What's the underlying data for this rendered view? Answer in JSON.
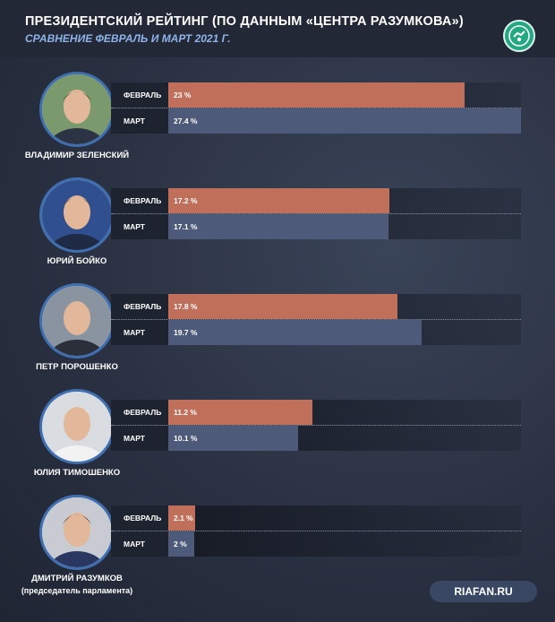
{
  "header": {
    "title": "ПРЕЗИДЕНТСКИЙ РЕЙТИНГ (ПО ДАННЫМ «ЦЕНТРА РАЗУМКОВА»)",
    "subtitle": "СРАВНЕНИЕ ФЕВРАЛЬ И МАРТ 2021 Г."
  },
  "source": "RIAFAN.RU",
  "colors": {
    "february": "#c0705a",
    "march": "#4e5a7a",
    "accent": "#3f6fb0"
  },
  "chart_data": {
    "type": "bar",
    "orientation": "horizontal",
    "title": "ПРЕЗИДЕНТСКИЙ РЕЙТИНГ (ПО ДАННЫМ «ЦЕНТРА РАЗУМКОВА»)",
    "subtitle": "СРАВНЕНИЕ ФЕВРАЛЬ И МАРТ 2021 Г.",
    "xlim": [
      0,
      27.4
    ],
    "series_labels": [
      "ФЕВРАЛЬ",
      "МАРТ"
    ],
    "categories": [
      {
        "name": "ВЛАДИМИР ЗЕЛЕНСКИЙ",
        "note": "",
        "feb": 23,
        "feb_label": "23 %",
        "mar": 27.4,
        "mar_label": "27.4 %"
      },
      {
        "name": "ЮРИЙ БОЙКО",
        "note": "",
        "feb": 17.2,
        "feb_label": "17.2 %",
        "mar": 17.1,
        "mar_label": "17.1 %"
      },
      {
        "name": "ПЕТР ПОРОШЕНКО",
        "note": "",
        "feb": 17.8,
        "feb_label": "17.8 %",
        "mar": 19.7,
        "mar_label": "19.7 %"
      },
      {
        "name": "ЮЛИЯ ТИМОШЕНКО",
        "note": "",
        "feb": 11.2,
        "feb_label": "11.2 %",
        "mar": 10.1,
        "mar_label": "10.1 %"
      },
      {
        "name": "ДМИТРИЙ РАЗУМКОВ",
        "note": "(председатель парламента)",
        "feb": 2.1,
        "feb_label": "2.1 %",
        "mar": 2,
        "mar_label": "2 %"
      }
    ]
  }
}
